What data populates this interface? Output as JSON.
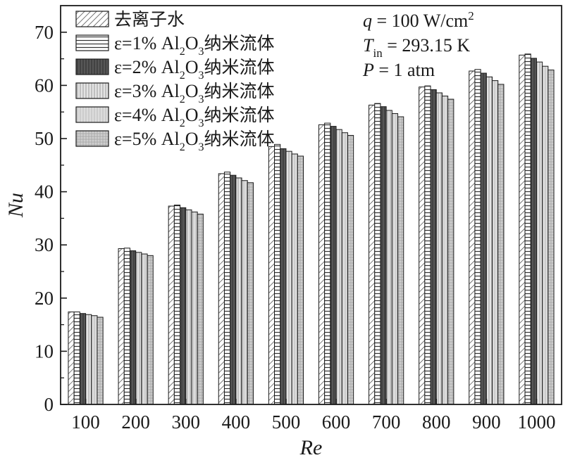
{
  "chart_data": {
    "type": "bar",
    "xlabel": "Re",
    "ylabel": "Nu",
    "ylim": [
      0,
      75
    ],
    "yticks": [
      0,
      10,
      20,
      30,
      40,
      50,
      60,
      70
    ],
    "grid": false,
    "legend_position": "top-left",
    "categories": [
      "100",
      "200",
      "300",
      "400",
      "500",
      "600",
      "700",
      "800",
      "900",
      "1000"
    ],
    "series": [
      {
        "id": "s0",
        "legend_main": "去离子水",
        "pattern": "diag",
        "values": [
          17.4,
          29.3,
          37.3,
          43.4,
          48.5,
          52.6,
          56.3,
          59.7,
          62.7,
          65.7
        ]
      },
      {
        "id": "s1",
        "legend_main": "ε=1% Al",
        "legend_sub1": "2",
        "legend_mid": "O",
        "legend_sub2": "3",
        "legend_cn": "纳米流体",
        "pattern": "hlines",
        "values": [
          17.4,
          29.4,
          37.5,
          43.7,
          48.9,
          52.9,
          56.6,
          59.9,
          63.0,
          65.9
        ]
      },
      {
        "id": "s2",
        "legend_main": "ε=2% Al",
        "legend_sub1": "2",
        "legend_mid": "O",
        "legend_sub2": "3",
        "legend_cn": "纳米流体",
        "pattern": "dark",
        "values": [
          17.1,
          28.9,
          37.0,
          43.1,
          48.1,
          52.3,
          56.0,
          59.2,
          62.3,
          65.1
        ]
      },
      {
        "id": "s3",
        "legend_main": "ε=3% Al",
        "legend_sub1": "2",
        "legend_mid": "O",
        "legend_sub2": "3",
        "legend_cn": "纳米流体",
        "pattern": "vlines",
        "values": [
          16.9,
          28.6,
          36.6,
          42.6,
          47.6,
          51.7,
          55.3,
          58.6,
          61.6,
          64.4
        ]
      },
      {
        "id": "s4",
        "legend_main": "ε=4% Al",
        "legend_sub1": "2",
        "legend_mid": "O",
        "legend_sub2": "3",
        "legend_cn": "纳米流体",
        "pattern": "light",
        "values": [
          16.7,
          28.3,
          36.2,
          42.1,
          47.1,
          51.1,
          54.7,
          58.0,
          60.9,
          63.6
        ]
      },
      {
        "id": "s5",
        "legend_main": "ε=5% Al",
        "legend_sub1": "2",
        "legend_mid": "O",
        "legend_sub2": "3",
        "legend_cn": "纳米流体",
        "pattern": "grid",
        "values": [
          16.4,
          28.0,
          35.8,
          41.7,
          46.7,
          50.6,
          54.1,
          57.4,
          60.2,
          62.9
        ]
      }
    ],
    "annotations": {
      "q_sym": "q",
      "q_text": " = 100 W/cm",
      "q_sup": "2",
      "t_sym": "T",
      "t_sub": "in",
      "t_text": " = 293.15 K",
      "p_sym": "P",
      "p_text": " = 1 atm"
    }
  }
}
